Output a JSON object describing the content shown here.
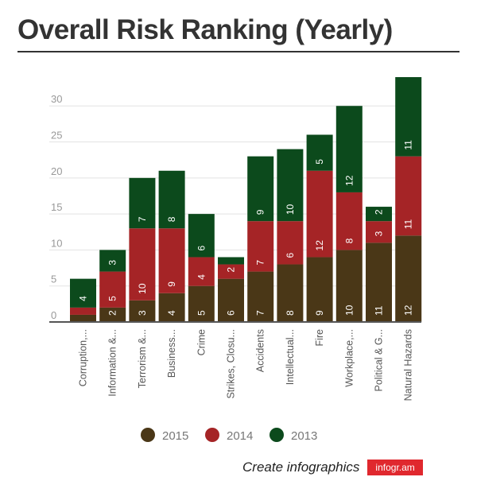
{
  "page": {
    "title": "Overall Risk Ranking (Yearly)"
  },
  "chart_data": {
    "type": "bar",
    "stacked": true,
    "title": "Overall Risk Ranking (Yearly)",
    "xlabel": "",
    "ylabel": "",
    "ylim": [
      0,
      34
    ],
    "yticks": [
      0,
      5,
      10,
      15,
      20,
      25,
      30
    ],
    "categories": [
      "Corruption,...",
      "Information &...",
      "Terrorism &...",
      "Business...",
      "Crime",
      "Strikes, Closu...",
      "Accidents",
      "Intellectual...",
      "Fire",
      "Workplace,...",
      "Political & G...",
      "Natural Hazards"
    ],
    "series": [
      {
        "name": "2015",
        "color": "#4a3717",
        "values": [
          1,
          2,
          3,
          4,
          5,
          6,
          7,
          8,
          9,
          10,
          11,
          12
        ]
      },
      {
        "name": "2014",
        "color": "#a52426",
        "values": [
          1,
          5,
          10,
          9,
          4,
          2,
          7,
          6,
          12,
          8,
          3,
          11
        ]
      },
      {
        "name": "2013",
        "color": "#0c4a1c",
        "values": [
          4,
          3,
          7,
          8,
          6,
          1,
          9,
          10,
          5,
          12,
          2,
          11
        ]
      }
    ],
    "data_labels": [
      [
        "",
        "",
        "4"
      ],
      [
        "2",
        "5",
        "3"
      ],
      [
        "3",
        "10",
        "7"
      ],
      [
        "4",
        "9",
        "8"
      ],
      [
        "5",
        "4",
        "6"
      ],
      [
        "6",
        "2",
        ""
      ],
      [
        "7",
        "7",
        "9"
      ],
      [
        "8",
        "6",
        "10"
      ],
      [
        "9",
        "12",
        "5"
      ],
      [
        "10",
        "8",
        "12"
      ],
      [
        "11",
        "3",
        "2"
      ],
      [
        "12",
        "11",
        "11"
      ]
    ],
    "legend": "bottom"
  },
  "footer": {
    "text": "Create infographics",
    "badge": "infogr.am"
  }
}
